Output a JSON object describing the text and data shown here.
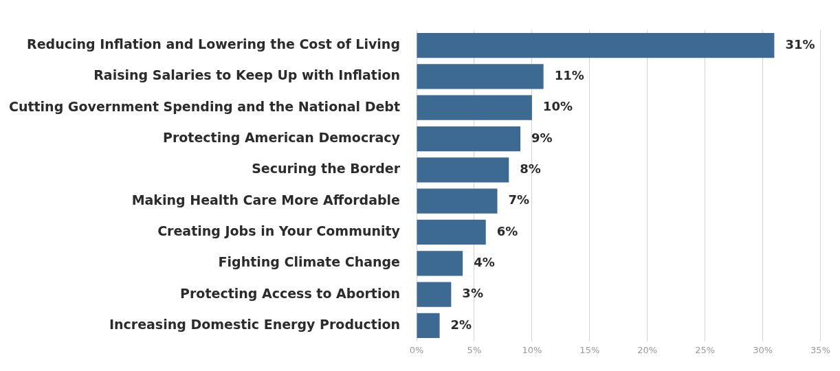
{
  "chart_data": {
    "type": "bar",
    "orientation": "horizontal",
    "categories": [
      "Reducing Inflation and Lowering the Cost of Living",
      "Raising Salaries to Keep Up with Inflation",
      "Cutting Government Spending and the National Debt",
      "Protecting American Democracy",
      "Securing the Border",
      "Making Health Care More Affordable",
      "Creating Jobs in Your Community",
      "Fighting Climate Change",
      "Protecting Access to Abortion",
      "Increasing Domestic Energy Production"
    ],
    "values": [
      31,
      11,
      10,
      9,
      8,
      7,
      6,
      4,
      3,
      2
    ],
    "value_labels": [
      "31%",
      "11%",
      "10%",
      "9%",
      "8%",
      "7%",
      "6%",
      "4%",
      "3%",
      "2%"
    ],
    "color": "#3d6a93",
    "xlim": [
      0,
      35
    ],
    "xticks": [
      {
        "value": 0,
        "label": "0%"
      },
      {
        "value": 5,
        "label": "5%"
      },
      {
        "value": 10,
        "label": "10%"
      },
      {
        "value": 15,
        "label": "15%"
      },
      {
        "value": 20,
        "label": "20%"
      },
      {
        "value": 25,
        "label": "25%"
      },
      {
        "value": 30,
        "label": "30%"
      },
      {
        "value": 35,
        "label": "35%"
      }
    ],
    "grid": "x"
  }
}
